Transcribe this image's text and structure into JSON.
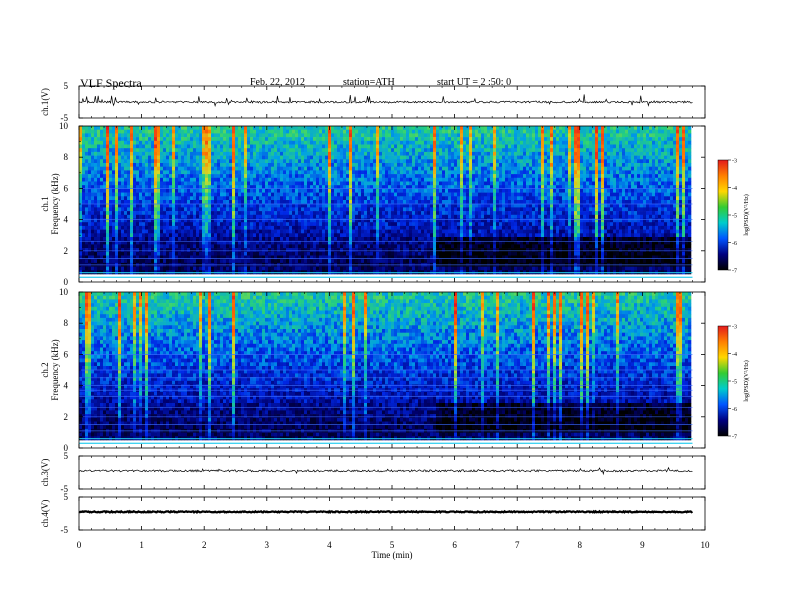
{
  "header": {
    "title": "VLF  Spectra",
    "date": "Feb. 22, 2012",
    "station": "station=ATH",
    "start": "start  UT =   2  :50: 0"
  },
  "colorbar": {
    "label": "log(PSD)(V²/Hz)",
    "ticks": [
      "-3",
      "-4",
      "-5",
      "-6",
      "-7"
    ],
    "colors": [
      "#e31a1c",
      "#ff7f00",
      "#ffd700",
      "#33cc33",
      "#00cccc",
      "#0055ff",
      "#000080",
      "#000000"
    ]
  },
  "chart_data": [
    {
      "type": "line",
      "panel": "ch.1 time series",
      "ylabel": "ch.1(V)",
      "yticks": [
        "5",
        "-5"
      ],
      "ylim": [
        -5,
        5
      ],
      "baseline": 0,
      "x_range": [
        0,
        9.8
      ]
    },
    {
      "type": "heatmap",
      "panel": "ch.1 spectrogram",
      "ylabel_lines": [
        "ch.1",
        "Frequency  (kHz)"
      ],
      "yticks": [
        "0",
        "2",
        "4",
        "6",
        "8",
        "10"
      ],
      "ylim": [
        0,
        10
      ],
      "x_range": [
        0,
        9.8
      ],
      "quantity": "log(PSD)",
      "color_range": [
        -7,
        -3
      ]
    },
    {
      "type": "heatmap",
      "panel": "ch.2 spectrogram",
      "ylabel_lines": [
        "ch.2",
        "Frequency  (kHz)"
      ],
      "yticks": [
        "0",
        "2",
        "4",
        "6",
        "8",
        "10"
      ],
      "ylim": [
        0,
        10
      ],
      "x_range": [
        0,
        9.8
      ],
      "quantity": "log(PSD)",
      "color_range": [
        -7,
        -3
      ]
    },
    {
      "type": "line",
      "panel": "ch.3 time series",
      "ylabel": "ch.3(V)",
      "yticks": [
        "5",
        "-5"
      ],
      "ylim": [
        -5,
        5
      ],
      "baseline": 0.5,
      "x_range": [
        0,
        9.8
      ]
    },
    {
      "type": "line",
      "panel": "ch.4 time series",
      "ylabel": "ch.4(V)",
      "yticks": [
        "5",
        "-5"
      ],
      "ylim": [
        -5,
        5
      ],
      "baseline": 0.5,
      "x_range": [
        0,
        9.8
      ]
    }
  ],
  "xaxis": {
    "label": "Time  (min)",
    "ticks": [
      "0",
      "1",
      "2",
      "3",
      "4",
      "5",
      "6",
      "7",
      "8",
      "9",
      "10"
    ],
    "range": [
      0,
      10
    ]
  }
}
